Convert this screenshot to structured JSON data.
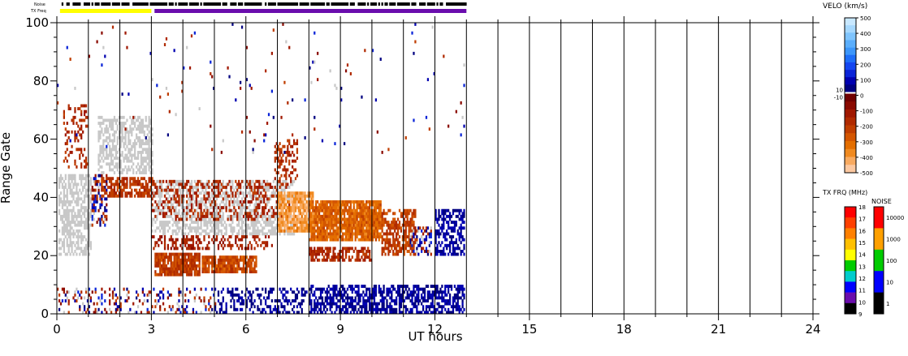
{
  "chart_data": {
    "type": "heatmap",
    "title": "",
    "xlabel": "UT hours",
    "ylabel": "Range Gate",
    "xlim": [
      0,
      24
    ],
    "ylim": [
      0,
      100
    ],
    "x_ticks": [
      "0",
      "3",
      "6",
      "9",
      "12",
      "15",
      "18",
      "21",
      "24"
    ],
    "y_ticks": [
      "0",
      "20",
      "40",
      "60",
      "80",
      "100"
    ],
    "grid": "vertical lines every 1 UT hour",
    "data_end_hour": 13,
    "strip_labels": {
      "noise": "Noise",
      "txfreq": "TX Freq"
    },
    "noise_strip_color": "black",
    "txfreq_strip_segments": [
      {
        "start": 0.0,
        "end": 3.0,
        "color": "#ffff00"
      },
      {
        "start": 3.0,
        "end": 13.0,
        "color": "#6a0dad"
      }
    ],
    "velocity_colorbar": {
      "title": "VELO (km/s)",
      "ticks": [
        "500",
        "400",
        "300",
        "200",
        "100",
        "0",
        "-100",
        "-200",
        "-300",
        "-400",
        "-500"
      ],
      "side_labels": [
        "10",
        "-10"
      ],
      "colors_positive": [
        "#000080",
        "#0000b0",
        "#0a24d8",
        "#1446f0",
        "#1e6ef8",
        "#3c96fa",
        "#5aaefc",
        "#7fc4fd",
        "#a6d8fe",
        "#c8e8ff"
      ],
      "colors_negative": [
        "#700000",
        "#8a0a00",
        "#a01800",
        "#b02a00",
        "#c03e00",
        "#d45600",
        "#e46e00",
        "#f08a20",
        "#f8aa60",
        "#fcc8a0"
      ]
    },
    "txfreq_colorbar": {
      "title": "TX FRQ (MHz)",
      "ticks": [
        "18",
        "17",
        "16",
        "15",
        "14",
        "13",
        "12",
        "11",
        "10",
        "9"
      ],
      "colors": [
        "#ff0000",
        "#ff4000",
        "#ff8000",
        "#ffc000",
        "#ffff00",
        "#00cc00",
        "#00cccc",
        "#0000ff",
        "#6a0dad",
        "#000000"
      ]
    },
    "noise_colorbar": {
      "title": "NOISE",
      "ticks": [
        "10000",
        "1000",
        "100",
        "10",
        "1"
      ],
      "colors": [
        "#ff0000",
        "#ffa000",
        "#00cc00",
        "#0000ff",
        "#000000"
      ]
    },
    "groundscatter_color": "#c8c8c8",
    "regions": [
      {
        "x": [
          0.05,
          1.1
        ],
        "y": [
          20,
          48
        ],
        "kind": "gs",
        "density": 0.55
      },
      {
        "x": [
          0.2,
          1.0
        ],
        "y": [
          50,
          72
        ],
        "kind": "neg",
        "v": -180,
        "density": 0.25
      },
      {
        "x": [
          1.1,
          1.6
        ],
        "y": [
          30,
          48
        ],
        "kind": "mix",
        "v": -160,
        "density": 0.4
      },
      {
        "x": [
          1.3,
          3.0
        ],
        "y": [
          48,
          68
        ],
        "kind": "gs",
        "density": 0.6
      },
      {
        "x": [
          1.4,
          3.0
        ],
        "y": [
          40,
          47
        ],
        "kind": "neg",
        "v": -200,
        "density": 0.65
      },
      {
        "x": [
          3.0,
          7.5
        ],
        "y": [
          27,
          46
        ],
        "kind": "gs",
        "density": 0.55
      },
      {
        "x": [
          3.0,
          7.4
        ],
        "y": [
          32,
          46
        ],
        "kind": "neg",
        "v": -160,
        "density": 0.3
      },
      {
        "x": [
          3.0,
          6.8
        ],
        "y": [
          22,
          27
        ],
        "kind": "neg",
        "v": -140,
        "density": 0.35
      },
      {
        "x": [
          3.1,
          4.5
        ],
        "y": [
          13,
          21
        ],
        "kind": "neg",
        "v": -210,
        "density": 0.9
      },
      {
        "x": [
          4.6,
          6.3
        ],
        "y": [
          14,
          20
        ],
        "kind": "neg",
        "v": -250,
        "density": 0.85
      },
      {
        "x": [
          6.9,
          7.6
        ],
        "y": [
          46,
          60
        ],
        "kind": "neg",
        "v": -180,
        "density": 0.45
      },
      {
        "x": [
          7.0,
          8.1
        ],
        "y": [
          28,
          42
        ],
        "kind": "neg",
        "v": -400,
        "density": 0.85
      },
      {
        "x": [
          8.0,
          10.3
        ],
        "y": [
          25,
          39
        ],
        "kind": "neg",
        "v": -300,
        "density": 0.9
      },
      {
        "x": [
          8.0,
          10.0
        ],
        "y": [
          18,
          23
        ],
        "kind": "neg",
        "v": -170,
        "density": 0.55
      },
      {
        "x": [
          10.3,
          11.4
        ],
        "y": [
          20,
          36
        ],
        "kind": "neg",
        "v": -220,
        "density": 0.6
      },
      {
        "x": [
          11.2,
          11.9
        ],
        "y": [
          20,
          30
        ],
        "kind": "mix",
        "v": -150,
        "density": 0.45
      },
      {
        "x": [
          12.0,
          12.95
        ],
        "y": [
          20,
          36
        ],
        "kind": "pos",
        "v": 60,
        "density": 0.55
      },
      {
        "x": [
          8.0,
          12.95
        ],
        "y": [
          0,
          10
        ],
        "kind": "pos",
        "v": 50,
        "density": 0.6
      },
      {
        "x": [
          5.0,
          7.9
        ],
        "y": [
          0,
          9
        ],
        "kind": "pos",
        "v": 40,
        "density": 0.35
      },
      {
        "x": [
          0.0,
          5.0
        ],
        "y": [
          0,
          9
        ],
        "kind": "mix",
        "v": -80,
        "density": 0.22
      },
      {
        "x": [
          0.0,
          13.0
        ],
        "y": [
          55,
          100
        ],
        "kind": "mix",
        "v": 100,
        "density": 0.012
      }
    ]
  }
}
